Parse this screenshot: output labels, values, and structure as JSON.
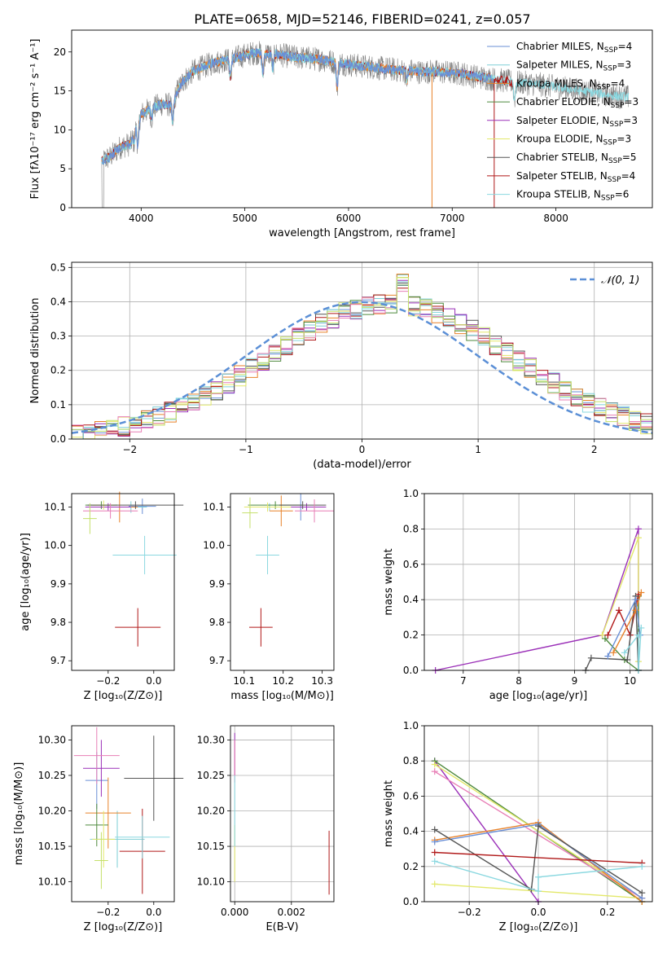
{
  "figure": {
    "title": "PLATE=0658, MJD=52146, FIBERID=0241, z=0.057"
  },
  "colors": {
    "Chabrier MILES": "#6a8fd6",
    "Salpeter MILES": "#7ecfd6",
    "Kroupa MILES": "#e8822a",
    "Chabrier ELODIE": "#4e8a3e",
    "Salpeter ELODIE": "#9b30b8",
    "Kroupa ELODIE": "#e3e86a",
    "Chabrier STELIB": "#555555",
    "Salpeter STELIB": "#b01818",
    "Kroupa STELIB": "#8ad8e0",
    "pink": "#e87fb6",
    "lime": "#c4e06a",
    "gaussian": "#5b8fd6",
    "data": "#808080"
  },
  "chart_data": [
    {
      "id": "spectrum",
      "type": "line",
      "xlabel": "wavelength [Angstrom, rest frame]",
      "ylabel": "Flux [fλ10⁻¹⁷ erg cm⁻² s⁻¹ A⁻¹]",
      "xlim": [
        3330,
        8930
      ],
      "ylim": [
        0,
        22.8
      ],
      "xticks": [
        "4000",
        "5000",
        "6000",
        "7000",
        "8000"
      ],
      "yticks": [
        "0",
        "5",
        "10",
        "15",
        "20"
      ],
      "grid": false,
      "legend_position": "upper right",
      "legend": [
        {
          "name": "Chabrier MILES",
          "nssp": "4"
        },
        {
          "name": "Salpeter MILES",
          "nssp": "3"
        },
        {
          "name": "Kroupa MILES",
          "nssp": "4"
        },
        {
          "name": "Chabrier ELODIE",
          "nssp": "3"
        },
        {
          "name": "Salpeter ELODIE",
          "nssp": "3"
        },
        {
          "name": "Kroupa ELODIE",
          "nssp": "3"
        },
        {
          "name": "Chabrier STELIB",
          "nssp": "5"
        },
        {
          "name": "Salpeter STELIB",
          "nssp": "4"
        },
        {
          "name": "Kroupa STELIB",
          "nssp": "6"
        }
      ],
      "legend_suffix_prefix": ", N",
      "legend_suffix_sub": "SSP",
      "continuum": [
        [
          3620,
          6.0
        ],
        [
          3700,
          6.5
        ],
        [
          3800,
          7.8
        ],
        [
          3900,
          8.2
        ],
        [
          3950,
          10.5
        ],
        [
          4000,
          12.0
        ],
        [
          4100,
          12.8
        ],
        [
          4200,
          13.3
        ],
        [
          4300,
          13.2
        ],
        [
          4350,
          15.0
        ],
        [
          4400,
          16.2
        ],
        [
          4500,
          17.5
        ],
        [
          4600,
          18.1
        ],
        [
          4700,
          18.6
        ],
        [
          4800,
          18.9
        ],
        [
          4900,
          19.2
        ],
        [
          5000,
          19.6
        ],
        [
          5100,
          19.9
        ],
        [
          5200,
          19.8
        ],
        [
          5300,
          19.7
        ],
        [
          5400,
          19.5
        ],
        [
          5500,
          19.3
        ],
        [
          5600,
          19.2
        ],
        [
          5700,
          19.1
        ],
        [
          5800,
          18.9
        ],
        [
          5900,
          18.6
        ],
        [
          6000,
          18.4
        ],
        [
          6100,
          18.2
        ],
        [
          6200,
          18.1
        ],
        [
          6300,
          17.9
        ],
        [
          6400,
          17.8
        ],
        [
          6500,
          17.6
        ],
        [
          6600,
          17.6
        ],
        [
          6700,
          17.4
        ],
        [
          6800,
          17.5
        ],
        [
          6900,
          17.4
        ],
        [
          7000,
          17.3
        ],
        [
          7100,
          17.2
        ],
        [
          7200,
          16.9
        ],
        [
          7300,
          16.7
        ],
        [
          7400,
          16.5
        ],
        [
          7500,
          16.3
        ],
        [
          7600,
          16.1
        ],
        [
          7700,
          16.0
        ],
        [
          7800,
          15.9
        ],
        [
          7900,
          15.7
        ],
        [
          8000,
          15.5
        ],
        [
          8100,
          15.3
        ],
        [
          8200,
          15.1
        ],
        [
          8300,
          14.9
        ],
        [
          8400,
          14.7
        ],
        [
          8500,
          14.5
        ],
        [
          8600,
          14.3
        ],
        [
          8700,
          14.2
        ]
      ],
      "absorption_features": [
        [
          3933,
          8.5
        ],
        [
          3968,
          8.0
        ],
        [
          4101,
          11.5
        ],
        [
          4304,
          11.0
        ],
        [
          4861,
          16.8
        ],
        [
          5175,
          17.2
        ],
        [
          5270,
          17.8
        ],
        [
          5890,
          15.6
        ],
        [
          6563,
          16.4
        ],
        [
          7600,
          14.0
        ]
      ]
    },
    {
      "id": "residuals",
      "type": "histogram",
      "xlabel": "(data-model)/error",
      "ylabel": "Normed distribution",
      "xlim": [
        -2.5,
        2.5
      ],
      "ylim": [
        0,
        0.515
      ],
      "xticks": [
        "−2",
        "−1",
        "0",
        "1",
        "2"
      ],
      "yticks": [
        "0.0",
        "0.1",
        "0.2",
        "0.3",
        "0.4",
        "0.5"
      ],
      "grid": true,
      "legend": "𝒩(0, 1)",
      "legend_position": "upper right",
      "bin_width": 0.1,
      "gaussian": {
        "mean": 0,
        "sigma": 1
      }
    },
    {
      "id": "age-vs-Z",
      "type": "errorbar",
      "xlabel": "Z [log₁₀(Z/Z⊙)]",
      "ylabel": "age  [log₁₀(age/yr)]",
      "xlim": [
        -0.36,
        0.09
      ],
      "ylim": [
        9.675,
        10.135
      ],
      "xticks": [
        "−0.2",
        "0.0"
      ],
      "yticks": [
        "9.7",
        "9.8",
        "9.9",
        "10.0",
        "10.1"
      ],
      "grid": false,
      "points": [
        {
          "series": "Chabrier MILES",
          "x": -0.05,
          "xerr": 0.06,
          "y": 10.102,
          "yerr": 0.02
        },
        {
          "series": "Salpeter MILES",
          "x": -0.1,
          "xerr": 0.07,
          "y": 10.1,
          "yerr": 0.015
        },
        {
          "series": "Kroupa MILES",
          "x": -0.15,
          "xerr": 0.08,
          "y": 10.1,
          "yerr": 0.04
        },
        {
          "series": "Chabrier ELODIE",
          "x": -0.23,
          "xerr": 0.07,
          "y": 10.105,
          "yerr": 0.01
        },
        {
          "series": "Salpeter ELODIE",
          "x": -0.2,
          "xerr": 0.1,
          "y": 10.1,
          "yerr": 0.01
        },
        {
          "series": "Kroupa ELODIE",
          "x": -0.22,
          "xerr": 0.05,
          "y": 10.105,
          "yerr": 0.012
        },
        {
          "series": "Chabrier STELIB",
          "x": -0.08,
          "xerr": 0.21,
          "y": 10.105,
          "yerr": 0.01
        },
        {
          "series": "Salpeter STELIB",
          "x": -0.07,
          "xerr": 0.1,
          "y": 9.787,
          "yerr": 0.05
        },
        {
          "series": "Kroupa STELIB",
          "x": -0.04,
          "xerr": 0.14,
          "y": 9.975,
          "yerr": 0.05
        },
        {
          "series": "pink",
          "x": -0.19,
          "xerr": 0.12,
          "y": 10.09,
          "yerr": 0.02
        },
        {
          "series": "lime",
          "x": -0.28,
          "xerr": 0.03,
          "y": 10.07,
          "yerr": 0.04
        }
      ]
    },
    {
      "id": "age-vs-mass",
      "type": "errorbar",
      "xlabel": "mass [log₁₀(M/M⊙)]",
      "xlim": [
        10.065,
        10.33
      ],
      "ylim": [
        9.675,
        10.135
      ],
      "xticks": [
        "10.1",
        "10.2",
        "10.3"
      ],
      "yticks": [
        "9.7",
        "9.8",
        "9.9",
        "10.0",
        "10.1"
      ],
      "grid": false,
      "points": [
        {
          "series": "Chabrier MILES",
          "x": 10.245,
          "xerr": 0.03,
          "y": 10.1,
          "yerr": 0.035
        },
        {
          "series": "Salpeter MILES",
          "x": 10.165,
          "xerr": 0.03,
          "y": 10.1,
          "yerr": 0.01
        },
        {
          "series": "Kroupa MILES",
          "x": 10.195,
          "xerr": 0.03,
          "y": 10.09,
          "yerr": 0.04
        },
        {
          "series": "Chabrier ELODIE",
          "x": 10.18,
          "xerr": 0.07,
          "y": 10.105,
          "yerr": 0.01
        },
        {
          "series": "Salpeter ELODIE",
          "x": 10.26,
          "xerr": 0.05,
          "y": 10.1,
          "yerr": 0.01
        },
        {
          "series": "Kroupa ELODIE",
          "x": 10.16,
          "xerr": 0.06,
          "y": 10.1,
          "yerr": 0.012
        },
        {
          "series": "Chabrier STELIB",
          "x": 10.25,
          "xerr": 0.06,
          "y": 10.105,
          "yerr": 0.01
        },
        {
          "series": "Salpeter STELIB",
          "x": 10.143,
          "xerr": 0.03,
          "y": 9.787,
          "yerr": 0.05
        },
        {
          "series": "Kroupa STELIB",
          "x": 10.16,
          "xerr": 0.03,
          "y": 9.975,
          "yerr": 0.05
        },
        {
          "series": "pink",
          "x": 10.28,
          "xerr": 0.05,
          "y": 10.09,
          "yerr": 0.03
        },
        {
          "series": "lime",
          "x": 10.115,
          "xerr": 0.02,
          "y": 10.085,
          "yerr": 0.04
        }
      ]
    },
    {
      "id": "massweight-vs-age",
      "type": "line",
      "xlabel": "age  [log₁₀(age/yr)]",
      "ylabel": "mass weight",
      "xlim": [
        6.3,
        10.4
      ],
      "ylim": [
        0,
        1.0
      ],
      "xticks": [
        "7",
        "8",
        "9",
        "10"
      ],
      "yticks": [
        "0.0",
        "0.2",
        "0.4",
        "0.6",
        "0.8",
        "1.0"
      ],
      "grid": true,
      "series": [
        {
          "name": "Salpeter ELODIE",
          "points": [
            [
              6.5,
              0.0
            ],
            [
              9.5,
              0.2
            ],
            [
              10.15,
              0.8
            ],
            [
              10.15,
              0.0
            ]
          ]
        },
        {
          "name": "Kroupa ELODIE",
          "points": [
            [
              9.5,
              0.2
            ],
            [
              10.15,
              0.75
            ],
            [
              10.15,
              0.05
            ]
          ]
        },
        {
          "name": "Chabrier ELODIE",
          "points": [
            [
              9.55,
              0.18
            ],
            [
              9.9,
              0.06
            ],
            [
              10.15,
              0.0
            ],
            [
              10.15,
              0.42
            ]
          ]
        },
        {
          "name": "Salpeter STELIB",
          "points": [
            [
              9.6,
              0.2
            ],
            [
              9.8,
              0.34
            ],
            [
              10.0,
              0.2
            ],
            [
              10.15,
              0.43
            ]
          ]
        },
        {
          "name": "Chabrier STELIB",
          "points": [
            [
              9.2,
              0.0
            ],
            [
              9.3,
              0.07
            ],
            [
              9.95,
              0.06
            ],
            [
              10.1,
              0.42
            ],
            [
              10.15,
              0.0
            ]
          ]
        },
        {
          "name": "Kroupa MILES",
          "points": [
            [
              9.7,
              0.1
            ],
            [
              10.1,
              0.34
            ],
            [
              10.2,
              0.44
            ]
          ]
        },
        {
          "name": "Chabrier MILES",
          "points": [
            [
              9.6,
              0.08
            ],
            [
              10.1,
              0.4
            ],
            [
              10.18,
              0.2
            ]
          ]
        },
        {
          "name": "Kroupa STELIB",
          "points": [
            [
              9.9,
              0.1
            ],
            [
              10.15,
              0.2
            ],
            [
              10.15,
              0.0
            ],
            [
              10.2,
              0.24
            ]
          ]
        }
      ]
    },
    {
      "id": "mass-vs-Z",
      "type": "errorbar",
      "xlabel": "Z [log₁₀(Z/Z⊙)]",
      "ylabel": "mass [log₁₀(M/M⊙)]",
      "xlim": [
        -0.36,
        0.09
      ],
      "ylim": [
        10.072,
        10.32
      ],
      "xticks": [
        "−0.2",
        "0.0"
      ],
      "yticks": [
        "10.10",
        "10.15",
        "10.20",
        "10.25",
        "10.30"
      ],
      "grid": false,
      "points": [
        {
          "series": "Chabrier MILES",
          "x": -0.25,
          "xerr": 0.05,
          "y": 10.243,
          "yerr": 0.04
        },
        {
          "series": "Salpeter MILES",
          "x": -0.16,
          "xerr": 0.12,
          "y": 10.16,
          "yerr": 0.04
        },
        {
          "series": "Kroupa MILES",
          "x": -0.2,
          "xerr": 0.1,
          "y": 10.197,
          "yerr": 0.05
        },
        {
          "series": "Chabrier ELODIE",
          "x": -0.25,
          "xerr": 0.05,
          "y": 10.18,
          "yerr": 0.03
        },
        {
          "series": "Salpeter ELODIE",
          "x": -0.23,
          "xerr": 0.08,
          "y": 10.26,
          "yerr": 0.04
        },
        {
          "series": "Kroupa ELODIE",
          "x": -0.22,
          "xerr": 0.05,
          "y": 10.16,
          "yerr": 0.04
        },
        {
          "series": "Chabrier STELIB",
          "x": 0.0,
          "xerr": 0.13,
          "y": 10.246,
          "yerr": 0.06
        },
        {
          "series": "Salpeter STELIB",
          "x": -0.05,
          "xerr": 0.1,
          "y": 10.143,
          "yerr": 0.06
        },
        {
          "series": "Kroupa STELIB",
          "x": -0.05,
          "xerr": 0.12,
          "y": 10.163,
          "yerr": 0.03
        },
        {
          "series": "pink",
          "x": -0.25,
          "xerr": 0.1,
          "y": 10.278,
          "yerr": 0.04
        },
        {
          "series": "lime",
          "x": -0.23,
          "xerr": 0.03,
          "y": 10.13,
          "yerr": 0.04
        }
      ]
    },
    {
      "id": "mass-vs-ebv",
      "type": "errorbar",
      "xlabel": "E(B-V)",
      "xlim": [
        -0.00015,
        0.0035
      ],
      "ylim": [
        10.072,
        10.32
      ],
      "xticks": [
        "0.000",
        "0.002"
      ],
      "yticks": [
        "10.10",
        "10.15",
        "10.20",
        "10.25",
        "10.30"
      ],
      "grid": true,
      "points": [
        {
          "series": "Salpeter ELODIE",
          "x": 0.0,
          "xerr": 0.0,
          "y": 10.28,
          "yerr": 0.03
        },
        {
          "series": "pink",
          "x": 0.0,
          "xerr": 0.0,
          "y": 10.27,
          "yerr": 0.03
        },
        {
          "series": "Kroupa ELODIE",
          "x": 0.0,
          "xerr": 0.0,
          "y": 10.14,
          "yerr": 0.04
        },
        {
          "series": "Kroupa STELIB",
          "x": 0.0,
          "xerr": 0.0,
          "y": 10.2,
          "yerr": 0.05
        },
        {
          "series": "Salpeter STELIB",
          "x": 0.00333,
          "xerr": 0.0,
          "y": 10.127,
          "yerr": 0.045
        }
      ]
    },
    {
      "id": "massweight-vs-Z",
      "type": "line",
      "xlabel": "Z [log₁₀(Z/Z⊙)]",
      "ylabel": "mass weight",
      "xlim": [
        -0.33,
        0.33
      ],
      "ylim": [
        0,
        1.0
      ],
      "xticks": [
        "−0.2",
        "0.0",
        "0.2"
      ],
      "yticks": [
        "0.0",
        "0.2",
        "0.4",
        "0.6",
        "0.8",
        "1.0"
      ],
      "grid": true,
      "series": [
        {
          "name": "Salpeter ELODIE",
          "points": [
            [
              -0.3,
              0.8
            ],
            [
              0.0,
              0.0
            ]
          ]
        },
        {
          "name": "Chabrier ELODIE",
          "points": [
            [
              -0.3,
              0.8
            ],
            [
              0.3,
              0.0
            ]
          ]
        },
        {
          "name": "Kroupa ELODIE",
          "points": [
            [
              -0.3,
              0.78
            ],
            [
              0.3,
              0.02
            ],
            [
              -0.3,
              0.1
            ]
          ]
        },
        {
          "name": "pink",
          "points": [
            [
              -0.3,
              0.74
            ],
            [
              0.3,
              0.02
            ]
          ]
        },
        {
          "name": "Kroupa MILES",
          "points": [
            [
              -0.3,
              0.35
            ],
            [
              0.0,
              0.45
            ],
            [
              0.3,
              0.0
            ]
          ]
        },
        {
          "name": "Chabrier MILES",
          "points": [
            [
              -0.3,
              0.34
            ],
            [
              0.0,
              0.44
            ],
            [
              0.3,
              0.02
            ]
          ]
        },
        {
          "name": "Chabrier STELIB",
          "points": [
            [
              -0.3,
              0.41
            ],
            [
              -0.02,
              0.07
            ],
            [
              0.0,
              0.43
            ],
            [
              0.3,
              0.05
            ]
          ]
        },
        {
          "name": "Salpeter STELIB",
          "points": [
            [
              -0.3,
              0.28
            ],
            [
              0.3,
              0.22
            ]
          ]
        },
        {
          "name": "Kroupa STELIB",
          "points": [
            [
              -0.3,
              0.23
            ],
            [
              0.0,
              0.06
            ],
            [
              0.0,
              0.14
            ],
            [
              0.3,
              0.2
            ]
          ]
        }
      ]
    }
  ]
}
